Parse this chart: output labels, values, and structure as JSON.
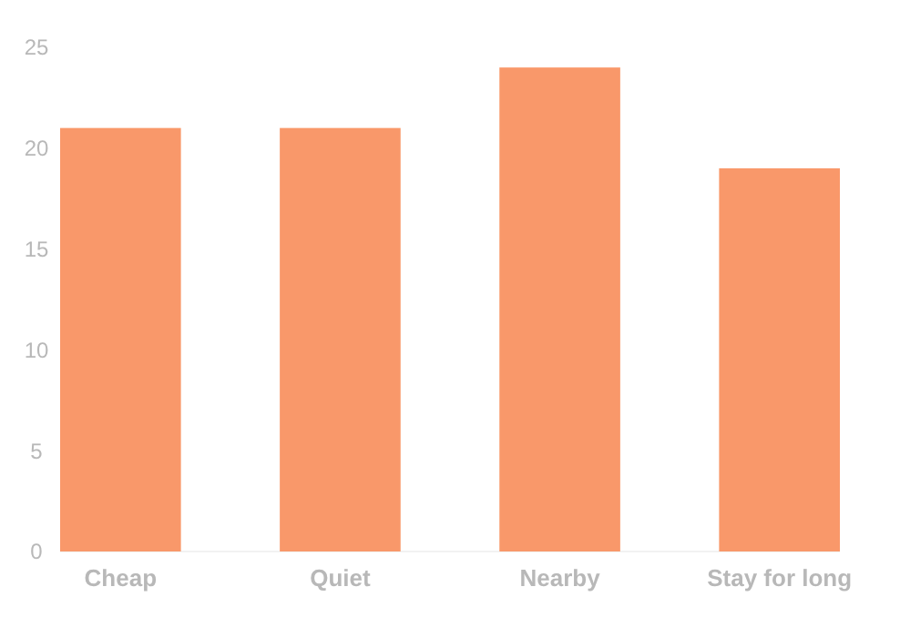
{
  "chart_data": {
    "type": "bar",
    "categories": [
      "Cheap",
      "Quiet",
      "Nearby",
      "Stay for long"
    ],
    "values": [
      21,
      21,
      24,
      19
    ],
    "color": "#f9986a",
    "ylim": [
      0,
      25
    ],
    "yticks": [
      0,
      5,
      10,
      15,
      20,
      25
    ],
    "grid": false
  }
}
